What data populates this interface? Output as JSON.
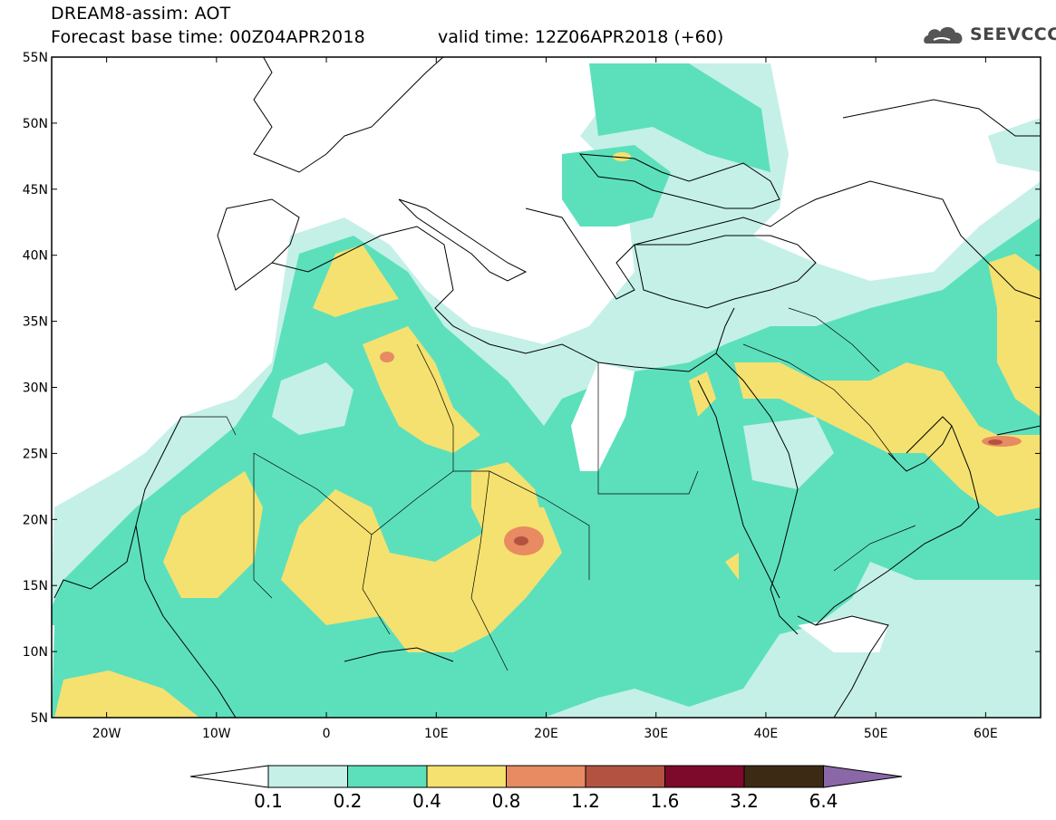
{
  "header": {
    "title": "DREAM8-assim: AOT",
    "forecast_base": "Forecast base time: 00Z04APR2018",
    "valid_time": "valid time: 12Z06APR2018 (+60)",
    "logo_text": "SEEVCCC"
  },
  "map": {
    "lat_labels": [
      "55N",
      "50N",
      "45N",
      "40N",
      "35N",
      "30N",
      "25N",
      "20N",
      "15N",
      "10N",
      "5N"
    ],
    "lon_labels": [
      "20W",
      "10W",
      "0",
      "10E",
      "20E",
      "30E",
      "40E",
      "50E",
      "60E"
    ],
    "extent": {
      "lon_min": -25,
      "lon_max": 65,
      "lat_min": 5,
      "lat_max": 55
    },
    "field": "AOT"
  },
  "colorbar": {
    "levels": [
      "0.1",
      "0.2",
      "0.4",
      "0.8",
      "1.2",
      "1.6",
      "3.2",
      "6.4"
    ],
    "colors": [
      "#ffffff",
      "#c4f0e8",
      "#5ce0bc",
      "#f5e170",
      "#e88a62",
      "#b35240",
      "#7d0a2a",
      "#3d2a14",
      "#8a68a8"
    ]
  },
  "colors": {
    "very_light": "#c4f0e8",
    "light": "#5ce0bc",
    "moderate": "#f5e170",
    "high": "#e88a62",
    "very_high": "#b35240"
  }
}
